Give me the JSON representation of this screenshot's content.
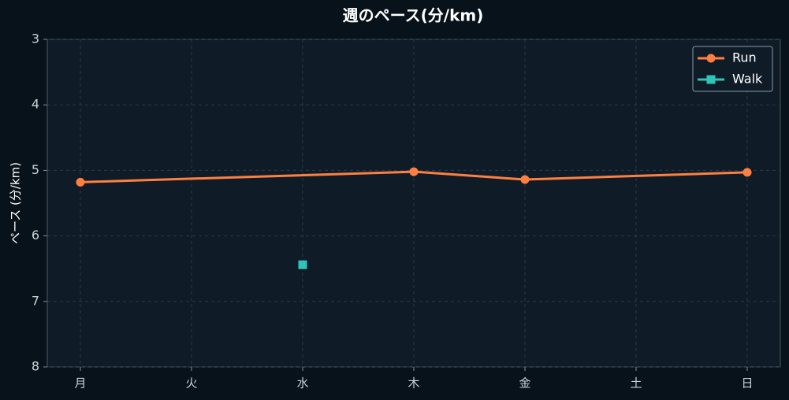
{
  "chart_data": {
    "type": "line",
    "title": "週のペース(分/km)",
    "y_label": "ペース (分/km)",
    "categories": [
      "月",
      "火",
      "水",
      "木",
      "金",
      "土",
      "日"
    ],
    "series": [
      {
        "name": "Run",
        "color": "#ff7f41",
        "marker": "circle",
        "x": [
          "月",
          "木",
          "金",
          "日"
        ],
        "values": [
          5.18,
          5.02,
          5.14,
          5.03
        ]
      },
      {
        "name": "Walk",
        "color": "#2ec4b6",
        "marker": "square",
        "x": [
          "水"
        ],
        "values": [
          6.44
        ]
      }
    ],
    "ylim": [
      8,
      3
    ],
    "yticks": [
      3,
      4,
      5,
      6,
      7,
      8
    ],
    "grid": true,
    "legend": "upper right"
  }
}
